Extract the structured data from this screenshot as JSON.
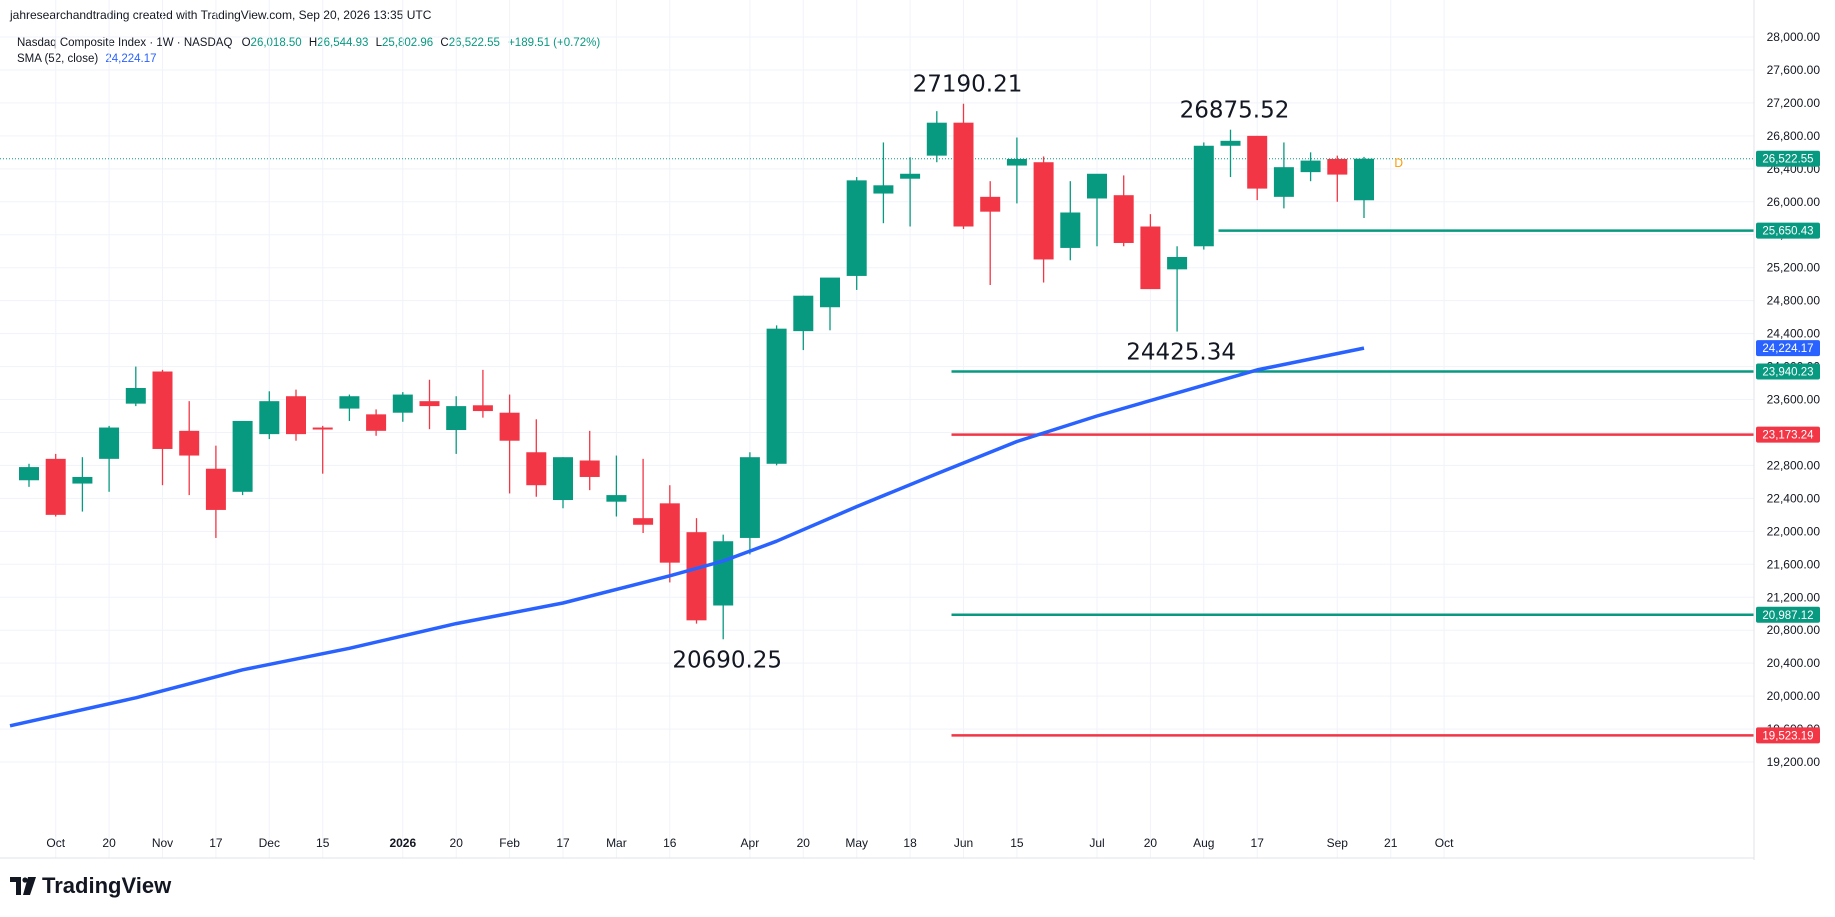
{
  "header": {
    "attribution": "jahresearchandtrading created with TradingView.com, Sep 20, 2026 13:35 UTC"
  },
  "legend": {
    "symbol": "Nasdaq Composite Index · 1W · NASDAQ",
    "o_label": "O",
    "o_value": "26,018.50",
    "h_label": "H",
    "h_value": "26,544.93",
    "l_label": "L",
    "l_value": "25,802.96",
    "c_label": "C",
    "c_value": "26,522.55",
    "change": "+189.51 (+0.72%)",
    "sma_label": "SMA (52, close)",
    "sma_value": "24,224.17"
  },
  "brand": {
    "name": "TradingView"
  },
  "colors": {
    "up": "#089981",
    "down": "#f23645",
    "sma": "#2962ff",
    "grid": "#f0f3fa",
    "accent_orange": "#ff9800"
  },
  "chart_data": {
    "type": "candlestick",
    "ylim": [
      18800,
      28000
    ],
    "y_ticks": [
      19200,
      19600,
      20000,
      20400,
      20800,
      21200,
      21600,
      22000,
      22400,
      22800,
      23200,
      23600,
      24000,
      24400,
      24800,
      25200,
      25600,
      26000,
      26400,
      26800,
      27200,
      27600,
      28000
    ],
    "y_tick_labels": [
      "19,200.00",
      "19,600.00",
      "20,000.00",
      "20,400.00",
      "20,800.00",
      "21,200.00",
      "21,600.00",
      "22,000.00",
      "22,400.00",
      "22,800.00",
      "23,200.00",
      "23,600.00",
      "24,000.00",
      "24,400.00",
      "24,800.00",
      "25,200.00",
      "25,600.00",
      "26,000.00",
      "26,400.00",
      "26,800.00",
      "27,200.00",
      "27,600.00",
      "28,000.00"
    ],
    "x_tick_labels": [
      {
        "i": 1,
        "label": "Oct",
        "bold": false
      },
      {
        "i": 3,
        "label": "20",
        "bold": false
      },
      {
        "i": 5,
        "label": "Nov",
        "bold": false
      },
      {
        "i": 7,
        "label": "17",
        "bold": false
      },
      {
        "i": 9,
        "label": "Dec",
        "bold": false
      },
      {
        "i": 11,
        "label": "15",
        "bold": false
      },
      {
        "i": 14,
        "label": "2026",
        "bold": true
      },
      {
        "i": 16,
        "label": "20",
        "bold": false
      },
      {
        "i": 18,
        "label": "Feb",
        "bold": false
      },
      {
        "i": 20,
        "label": "17",
        "bold": false
      },
      {
        "i": 22,
        "label": "Mar",
        "bold": false
      },
      {
        "i": 24,
        "label": "16",
        "bold": false
      },
      {
        "i": 27,
        "label": "Apr",
        "bold": false
      },
      {
        "i": 29,
        "label": "20",
        "bold": false
      },
      {
        "i": 31,
        "label": "May",
        "bold": false
      },
      {
        "i": 33,
        "label": "18",
        "bold": false
      },
      {
        "i": 35,
        "label": "Jun",
        "bold": false
      },
      {
        "i": 37,
        "label": "15",
        "bold": false
      },
      {
        "i": 40,
        "label": "Jul",
        "bold": false
      },
      {
        "i": 42,
        "label": "20",
        "bold": false
      },
      {
        "i": 44,
        "label": "Aug",
        "bold": false
      },
      {
        "i": 46,
        "label": "17",
        "bold": false
      },
      {
        "i": 49,
        "label": "Sep",
        "bold": false
      },
      {
        "i": 51,
        "label": "21",
        "bold": false
      },
      {
        "i": 53,
        "label": "Oct",
        "bold": false
      }
    ],
    "candles": [
      {
        "o": 22620,
        "h": 22820,
        "l": 22540,
        "c": 22780
      },
      {
        "o": 22880,
        "h": 22940,
        "l": 22180,
        "c": 22200
      },
      {
        "o": 22580,
        "h": 22900,
        "l": 22240,
        "c": 22660
      },
      {
        "o": 22880,
        "h": 23280,
        "l": 22480,
        "c": 23260
      },
      {
        "o": 23550,
        "h": 24000,
        "l": 23520,
        "c": 23740
      },
      {
        "o": 23940,
        "h": 23960,
        "l": 22560,
        "c": 23000
      },
      {
        "o": 23220,
        "h": 23580,
        "l": 22440,
        "c": 22920
      },
      {
        "o": 22760,
        "h": 23040,
        "l": 21920,
        "c": 22260
      },
      {
        "o": 22480,
        "h": 23320,
        "l": 22440,
        "c": 23340
      },
      {
        "o": 23180,
        "h": 23700,
        "l": 23120,
        "c": 23580
      },
      {
        "o": 23640,
        "h": 23720,
        "l": 23100,
        "c": 23180
      },
      {
        "o": 23260,
        "h": 23280,
        "l": 22700,
        "c": 23240
      },
      {
        "o": 23490,
        "h": 23660,
        "l": 23340,
        "c": 23640
      },
      {
        "o": 23420,
        "h": 23480,
        "l": 23160,
        "c": 23220
      },
      {
        "o": 23440,
        "h": 23690,
        "l": 23330,
        "c": 23660
      },
      {
        "o": 23580,
        "h": 23840,
        "l": 23240,
        "c": 23520
      },
      {
        "o": 23230,
        "h": 23640,
        "l": 22940,
        "c": 23520
      },
      {
        "o": 23530,
        "h": 23960,
        "l": 23380,
        "c": 23460
      },
      {
        "o": 23440,
        "h": 23660,
        "l": 22460,
        "c": 23100
      },
      {
        "o": 22960,
        "h": 23360,
        "l": 22420,
        "c": 22560
      },
      {
        "o": 22380,
        "h": 22900,
        "l": 22280,
        "c": 22900
      },
      {
        "o": 22860,
        "h": 23220,
        "l": 22500,
        "c": 22660
      },
      {
        "o": 22360,
        "h": 22920,
        "l": 22180,
        "c": 22440
      },
      {
        "o": 22160,
        "h": 22880,
        "l": 21980,
        "c": 22080
      },
      {
        "o": 22340,
        "h": 22560,
        "l": 21380,
        "c": 21620
      },
      {
        "o": 21990,
        "h": 22160,
        "l": 20880,
        "c": 20920
      },
      {
        "o": 21100,
        "h": 21960,
        "l": 20690,
        "c": 21880
      },
      {
        "o": 21920,
        "h": 22960,
        "l": 21720,
        "c": 22900
      },
      {
        "o": 22820,
        "h": 24500,
        "l": 22800,
        "c": 24460
      },
      {
        "o": 24430,
        "h": 24860,
        "l": 24200,
        "c": 24860
      },
      {
        "o": 24720,
        "h": 25060,
        "l": 24440,
        "c": 25080
      },
      {
        "o": 25100,
        "h": 26300,
        "l": 24930,
        "c": 26260
      },
      {
        "o": 26100,
        "h": 26720,
        "l": 25740,
        "c": 26200
      },
      {
        "o": 26280,
        "h": 26540,
        "l": 25700,
        "c": 26340
      },
      {
        "o": 26560,
        "h": 27100,
        "l": 26480,
        "c": 26960
      },
      {
        "o": 26960,
        "h": 27190,
        "l": 25670,
        "c": 25700
      },
      {
        "o": 26060,
        "h": 26250,
        "l": 24990,
        "c": 25880
      },
      {
        "o": 26440,
        "h": 26780,
        "l": 25980,
        "c": 26520
      },
      {
        "o": 26480,
        "h": 26550,
        "l": 25020,
        "c": 25300
      },
      {
        "o": 25440,
        "h": 26250,
        "l": 25290,
        "c": 25870
      },
      {
        "o": 26040,
        "h": 26320,
        "l": 25460,
        "c": 26340
      },
      {
        "o": 26080,
        "h": 26320,
        "l": 25460,
        "c": 25500
      },
      {
        "o": 25700,
        "h": 25850,
        "l": 24950,
        "c": 24940
      },
      {
        "o": 25180,
        "h": 25460,
        "l": 24425,
        "c": 25330
      },
      {
        "o": 25460,
        "h": 26720,
        "l": 25420,
        "c": 26680
      },
      {
        "o": 26680,
        "h": 26875,
        "l": 26300,
        "c": 26740
      },
      {
        "o": 26800,
        "h": 26800,
        "l": 26020,
        "c": 26160
      },
      {
        "o": 26060,
        "h": 26720,
        "l": 25920,
        "c": 26420
      },
      {
        "o": 26360,
        "h": 26600,
        "l": 26250,
        "c": 26500
      },
      {
        "o": 26520,
        "h": 26560,
        "l": 26000,
        "c": 26330
      },
      {
        "o": 26018.5,
        "h": 26544.93,
        "l": 25802.96,
        "c": 26522.55
      }
    ],
    "sma": [
      {
        "i": 0,
        "v": 19640
      },
      {
        "i": 4,
        "v": 19980
      },
      {
        "i": 8,
        "v": 20320
      },
      {
        "i": 12,
        "v": 20580
      },
      {
        "i": 16,
        "v": 20880
      },
      {
        "i": 20,
        "v": 21130
      },
      {
        "i": 24,
        "v": 21460
      },
      {
        "i": 26,
        "v": 21640
      },
      {
        "i": 28,
        "v": 21880
      },
      {
        "i": 31,
        "v": 22300
      },
      {
        "i": 34,
        "v": 22700
      },
      {
        "i": 37,
        "v": 23090
      },
      {
        "i": 40,
        "v": 23400
      },
      {
        "i": 43,
        "v": 23680
      },
      {
        "i": 46,
        "v": 23960
      },
      {
        "i": 50,
        "v": 24224.17
      }
    ],
    "hlines": [
      {
        "price": 25650.43,
        "label": "25,650.43",
        "color": "#089981",
        "from_i": 45
      },
      {
        "price": 23940.23,
        "label": "23,940.23",
        "color": "#089981",
        "from_i": 35
      },
      {
        "price": 23173.24,
        "label": "23,173.24",
        "color": "#f23645",
        "from_i": 35
      },
      {
        "price": 20987.12,
        "label": "20,987.12",
        "color": "#089981",
        "from_i": 35
      },
      {
        "price": 19523.19,
        "label": "19,523.19",
        "color": "#f23645",
        "from_i": 35
      }
    ],
    "current_price": {
      "price": 26522.55,
      "label": "26,522.55"
    },
    "sma_last": {
      "price": 24224.17,
      "label": "24,224.17"
    },
    "annotations": [
      {
        "text": "27190.21",
        "i": 35,
        "price": 27190.21,
        "pos": "above"
      },
      {
        "text": "26875.52",
        "i": 45,
        "price": 26875.52,
        "pos": "above"
      },
      {
        "text": "24425.34",
        "i": 43,
        "price": 24425.34,
        "pos": "below"
      },
      {
        "text": "20690.25",
        "i": 26,
        "price": 20690.25,
        "pos": "below"
      }
    ],
    "dividend_marker": {
      "text": "D",
      "i": 51.3,
      "price": 26480
    }
  }
}
